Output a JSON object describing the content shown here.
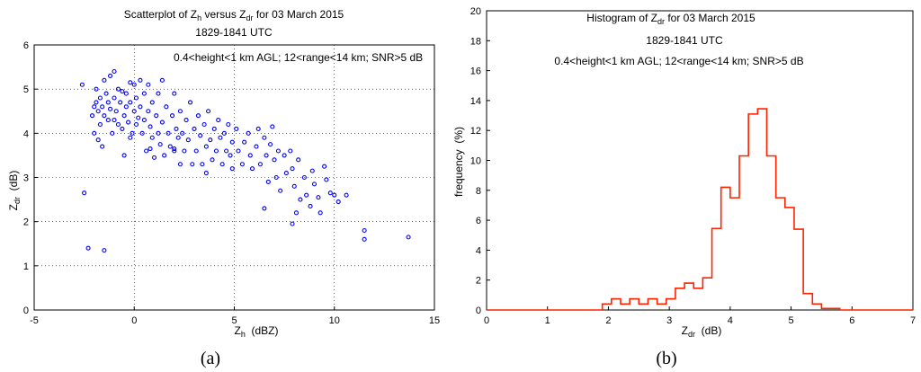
{
  "chart_data": [
    {
      "panel_label": "(a)",
      "type": "scatter",
      "title": {
        "pre": "Scatterplot of Z",
        "sub1": "h",
        "mid": " versus Z",
        "sub2": "dr",
        "post": " for 03 March 2015"
      },
      "subtitle": "1829-1841 UTC",
      "annotation": "0.4<height<1 km AGL; 12<range<14 km; SNR>5 dB",
      "xlabel": {
        "main": "Z",
        "sub": "h",
        "rest": "  (dBZ)"
      },
      "ylabel": {
        "main": "Z",
        "sub": "dr",
        "rest": "  (dB)"
      },
      "xlim": [
        -5,
        15
      ],
      "ylim": [
        0,
        6
      ],
      "xticks": [
        -5,
        0,
        5,
        10,
        15
      ],
      "yticks": [
        0,
        1,
        2,
        3,
        4,
        5,
        6
      ],
      "grid": true,
      "marker_color": "#0000ff",
      "points": [
        [
          -2.6,
          5.1
        ],
        [
          -2.5,
          2.65
        ],
        [
          -2.3,
          1.4
        ],
        [
          -2.1,
          4.4
        ],
        [
          -2.0,
          4.6
        ],
        [
          -2.0,
          4.0
        ],
        [
          -1.9,
          5.0
        ],
        [
          -1.9,
          4.7
        ],
        [
          -1.8,
          4.5
        ],
        [
          -1.8,
          3.85
        ],
        [
          -1.7,
          4.8
        ],
        [
          -1.7,
          4.2
        ],
        [
          -1.6,
          4.6
        ],
        [
          -1.6,
          3.7
        ],
        [
          -1.5,
          5.2
        ],
        [
          -1.5,
          4.4
        ],
        [
          -1.5,
          1.35
        ],
        [
          -1.4,
          4.9
        ],
        [
          -1.3,
          4.7
        ],
        [
          -1.3,
          4.3
        ],
        [
          -1.2,
          5.3
        ],
        [
          -1.2,
          4.55
        ],
        [
          -1.1,
          4.0
        ],
        [
          -1.0,
          5.4
        ],
        [
          -1.0,
          4.8
        ],
        [
          -1.0,
          4.3
        ],
        [
          -0.9,
          4.5
        ],
        [
          -0.8,
          5.0
        ],
        [
          -0.8,
          4.2
        ],
        [
          -0.7,
          4.7
        ],
        [
          -0.6,
          4.95
        ],
        [
          -0.6,
          4.1
        ],
        [
          -0.5,
          4.4
        ],
        [
          -0.5,
          3.5
        ],
        [
          -0.4,
          4.9
        ],
        [
          -0.4,
          4.6
        ],
        [
          -0.3,
          4.25
        ],
        [
          -0.2,
          5.15
        ],
        [
          -0.2,
          4.7
        ],
        [
          -0.1,
          4.0
        ],
        [
          0.0,
          4.5
        ],
        [
          0.0,
          5.1
        ],
        [
          0.1,
          4.2
        ],
        [
          0.1,
          4.8
        ],
        [
          0.2,
          4.35
        ],
        [
          0.3,
          5.2
        ],
        [
          0.3,
          4.6
        ],
        [
          0.4,
          4.0
        ],
        [
          0.5,
          4.9
        ],
        [
          0.5,
          4.3
        ],
        [
          0.6,
          3.6
        ],
        [
          0.7,
          5.1
        ],
        [
          0.7,
          4.5
        ],
        [
          0.8,
          4.15
        ],
        [
          0.9,
          4.7
        ],
        [
          0.9,
          3.9
        ],
        [
          1.0,
          3.45
        ],
        [
          1.1,
          4.4
        ],
        [
          1.2,
          4.0
        ],
        [
          1.2,
          4.9
        ],
        [
          1.3,
          3.75
        ],
        [
          1.4,
          5.2
        ],
        [
          1.4,
          4.25
        ],
        [
          1.5,
          3.5
        ],
        [
          1.6,
          4.6
        ],
        [
          1.7,
          4.0
        ],
        [
          1.8,
          3.7
        ],
        [
          1.9,
          4.4
        ],
        [
          2.0,
          3.6
        ],
        [
          2.0,
          4.9
        ],
        [
          2.1,
          4.1
        ],
        [
          2.2,
          3.9
        ],
        [
          2.3,
          4.5
        ],
        [
          2.3,
          3.3
        ],
        [
          2.4,
          4.0
        ],
        [
          2.5,
          3.6
        ],
        [
          2.6,
          4.3
        ],
        [
          2.7,
          3.85
        ],
        [
          2.8,
          4.7
        ],
        [
          2.9,
          3.3
        ],
        [
          3.0,
          4.1
        ],
        [
          3.1,
          3.6
        ],
        [
          3.2,
          4.4
        ],
        [
          3.3,
          3.95
        ],
        [
          3.4,
          3.3
        ],
        [
          3.5,
          4.2
        ],
        [
          3.6,
          3.7
        ],
        [
          3.7,
          4.5
        ],
        [
          3.8,
          3.85
        ],
        [
          3.9,
          3.4
        ],
        [
          4.0,
          4.1
        ],
        [
          4.1,
          3.6
        ],
        [
          4.2,
          4.3
        ],
        [
          4.3,
          3.9
        ],
        [
          4.4,
          3.3
        ],
        [
          4.5,
          4.0
        ],
        [
          4.6,
          3.6
        ],
        [
          4.7,
          4.2
        ],
        [
          4.8,
          3.5
        ],
        [
          4.9,
          3.8
        ],
        [
          5.1,
          4.1
        ],
        [
          5.2,
          3.6
        ],
        [
          5.4,
          3.3
        ],
        [
          5.5,
          3.8
        ],
        [
          5.7,
          4.0
        ],
        [
          5.8,
          3.5
        ],
        [
          5.9,
          3.2
        ],
        [
          6.1,
          3.7
        ],
        [
          6.2,
          4.1
        ],
        [
          6.3,
          3.3
        ],
        [
          6.5,
          3.9
        ],
        [
          6.6,
          3.5
        ],
        [
          6.7,
          2.9
        ],
        [
          6.8,
          3.75
        ],
        [
          6.9,
          4.15
        ],
        [
          7.0,
          3.4
        ],
        [
          7.1,
          3.0
        ],
        [
          7.2,
          3.6
        ],
        [
          7.3,
          2.7
        ],
        [
          7.5,
          3.5
        ],
        [
          7.6,
          3.1
        ],
        [
          7.8,
          3.6
        ],
        [
          7.9,
          3.2
        ],
        [
          8.0,
          2.8
        ],
        [
          8.1,
          2.2
        ],
        [
          8.2,
          3.4
        ],
        [
          8.3,
          2.5
        ],
        [
          8.5,
          3.0
        ],
        [
          8.6,
          2.6
        ],
        [
          8.8,
          2.35
        ],
        [
          8.9,
          3.15
        ],
        [
          9.0,
          2.85
        ],
        [
          9.2,
          2.55
        ],
        [
          9.3,
          2.2
        ],
        [
          9.5,
          3.25
        ],
        [
          9.6,
          2.95
        ],
        [
          9.8,
          2.65
        ],
        [
          10.0,
          2.6
        ],
        [
          10.2,
          2.45
        ],
        [
          10.6,
          2.6
        ],
        [
          11.5,
          1.8
        ],
        [
          11.5,
          1.6
        ],
        [
          13.7,
          1.65
        ],
        [
          7.9,
          1.95
        ],
        [
          6.5,
          2.3
        ],
        [
          4.9,
          3.2
        ],
        [
          3.6,
          3.1
        ],
        [
          2.0,
          3.65
        ],
        [
          0.8,
          3.65
        ],
        [
          -0.2,
          3.9
        ]
      ]
    },
    {
      "panel_label": "(b)",
      "type": "histogram",
      "title": {
        "pre": "Histogram of Z",
        "sub1": "dr",
        "post": " for 03 March 2015"
      },
      "subtitle": "1829-1841 UTC",
      "annotation": "0.4<height<1 km AGL; 12<range<14 km; SNR>5 dB",
      "xlabel": {
        "main": "Z",
        "sub": "dr",
        "rest": "  (dB)"
      },
      "ylabel": "frequency  (%)",
      "xlim": [
        0,
        7
      ],
      "ylim": [
        0,
        20
      ],
      "xticks": [
        0,
        1,
        2,
        3,
        4,
        5,
        6,
        7
      ],
      "yticks": [
        0,
        2,
        4,
        6,
        8,
        10,
        12,
        14,
        16,
        18,
        20
      ],
      "grid": false,
      "line_color": "#ff2200",
      "bin_width": 0.15,
      "bin_start": 1.9,
      "values": [
        0.4,
        0.75,
        0.4,
        0.75,
        0.4,
        0.75,
        0.4,
        0.75,
        1.45,
        1.8,
        1.45,
        2.15,
        5.45,
        8.2,
        7.5,
        10.3,
        13.1,
        13.45,
        10.3,
        7.5,
        6.85,
        5.4,
        1.1,
        0.4,
        0.1,
        0.1
      ]
    }
  ]
}
